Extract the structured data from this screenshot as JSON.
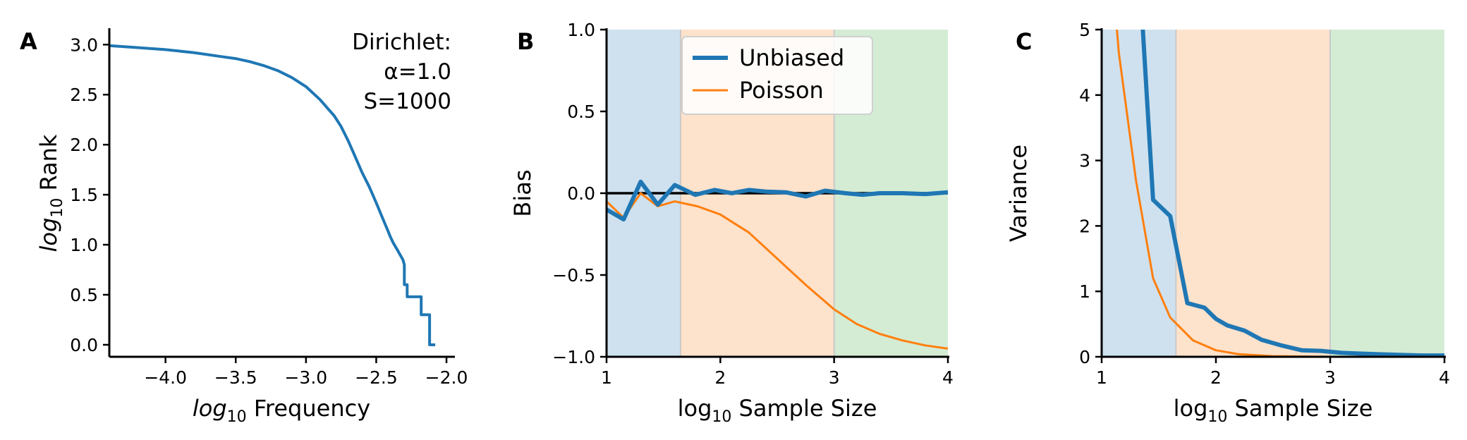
{
  "colors": {
    "unbiased": "#1f77b4",
    "poisson": "#ff7f0e",
    "band_blue": "#cfe1ef",
    "band_orange": "#fde2cc",
    "band_green": "#d4ecd4"
  },
  "chart_data": [
    {
      "type": "line",
      "panel": "A",
      "title": "",
      "xlabel_prefix": "log",
      "xlabel_sub": "10",
      "xlabel_suffix": " Frequency",
      "ylabel_prefix": "log",
      "ylabel_sub": "10",
      "ylabel_suffix": " Rank",
      "xlim": [
        -4.4,
        -1.95
      ],
      "ylim": [
        -0.12,
        3.15
      ],
      "xticks": [
        -4.0,
        -3.5,
        -3.0,
        -2.5,
        -2.0
      ],
      "xtick_labels": [
        "−4.0",
        "−3.5",
        "−3.0",
        "−2.5",
        "−2.0"
      ],
      "yticks": [
        0.0,
        0.5,
        1.0,
        1.5,
        2.0,
        2.5,
        3.0
      ],
      "ytick_labels": [
        "0.0",
        "0.5",
        "1.0",
        "1.5",
        "2.0",
        "2.5",
        "3.0"
      ],
      "annotation": [
        "Dirichlet:",
        "α=1.0",
        "S=1000"
      ],
      "series": [
        {
          "color": "#1f77b4",
          "x": [
            -4.4,
            -4.2,
            -4.0,
            -3.8,
            -3.6,
            -3.5,
            -3.4,
            -3.3,
            -3.2,
            -3.1,
            -3.0,
            -2.9,
            -2.85,
            -2.8,
            -2.75,
            -2.7,
            -2.65,
            -2.6,
            -2.55,
            -2.5,
            -2.45,
            -2.42,
            -2.4,
            -2.38,
            -2.35,
            -2.33,
            -2.31,
            -2.3,
            -2.3,
            -2.28,
            -2.28,
            -2.18,
            -2.18,
            -2.12,
            -2.12,
            -2.08
          ],
          "y": [
            2.99,
            2.97,
            2.95,
            2.92,
            2.88,
            2.86,
            2.83,
            2.79,
            2.74,
            2.67,
            2.58,
            2.45,
            2.37,
            2.29,
            2.18,
            2.04,
            1.88,
            1.72,
            1.58,
            1.42,
            1.25,
            1.15,
            1.08,
            1.02,
            0.95,
            0.9,
            0.85,
            0.8,
            0.6,
            0.6,
            0.48,
            0.48,
            0.3,
            0.3,
            0.0,
            0.0
          ]
        }
      ]
    },
    {
      "type": "line",
      "panel": "B",
      "title": "",
      "xlabel_prefix": "log",
      "xlabel_sub": "10",
      "xlabel_suffix": "  Sample Size",
      "ylabel": "Bias",
      "xlim": [
        1,
        4
      ],
      "ylim": [
        -1.0,
        1.0
      ],
      "xticks": [
        1,
        2,
        3,
        4
      ],
      "xtick_labels": [
        "1",
        "2",
        "3",
        "4"
      ],
      "yticks": [
        -1.0,
        -0.5,
        0.0,
        0.5,
        1.0
      ],
      "ytick_labels": [
        "−1.0",
        "−0.5",
        "0.0",
        "0.5",
        "1.0"
      ],
      "bands": [
        {
          "from": 1.0,
          "to": 1.65,
          "color": "#cfe1ef"
        },
        {
          "from": 1.65,
          "to": 3.0,
          "color": "#fde2cc"
        },
        {
          "from": 3.0,
          "to": 4.0,
          "color": "#d4ecd4"
        }
      ],
      "hline": 0.0,
      "legend": {
        "position": "upper-center",
        "entries": [
          "Unbiased",
          "Poisson"
        ]
      },
      "series": [
        {
          "name": "Unbiased",
          "color": "#1f77b4",
          "width": 6,
          "x": [
            1.0,
            1.15,
            1.3,
            1.45,
            1.6,
            1.78,
            1.95,
            2.1,
            2.25,
            2.4,
            2.58,
            2.75,
            2.92,
            3.1,
            3.25,
            3.4,
            3.6,
            3.8,
            4.0
          ],
          "y": [
            -0.1,
            -0.16,
            0.07,
            -0.07,
            0.05,
            -0.01,
            0.02,
            0.0,
            0.02,
            0.01,
            0.005,
            -0.02,
            0.015,
            0.0,
            -0.01,
            0.0,
            0.0,
            -0.005,
            0.005
          ]
        },
        {
          "name": "Poisson",
          "color": "#ff7f0e",
          "width": 3,
          "x": [
            1.0,
            1.15,
            1.3,
            1.45,
            1.6,
            1.8,
            2.0,
            2.25,
            2.5,
            2.75,
            3.0,
            3.2,
            3.4,
            3.6,
            3.8,
            4.0
          ],
          "y": [
            -0.05,
            -0.15,
            0.0,
            -0.08,
            -0.05,
            -0.08,
            -0.13,
            -0.24,
            -0.4,
            -0.56,
            -0.71,
            -0.8,
            -0.86,
            -0.9,
            -0.93,
            -0.95
          ]
        }
      ]
    },
    {
      "type": "line",
      "panel": "C",
      "title": "",
      "xlabel_prefix": "log",
      "xlabel_sub": "10",
      "xlabel_suffix": "  Sample Size",
      "ylabel": "Variance",
      "xlim": [
        1,
        4
      ],
      "ylim": [
        0,
        5
      ],
      "xticks": [
        1,
        2,
        3,
        4
      ],
      "xtick_labels": [
        "1",
        "2",
        "3",
        "4"
      ],
      "yticks": [
        0,
        1,
        2,
        3,
        4,
        5
      ],
      "ytick_labels": [
        "0",
        "1",
        "2",
        "3",
        "4",
        "5"
      ],
      "bands": [
        {
          "from": 1.0,
          "to": 1.65,
          "color": "#cfe1ef"
        },
        {
          "from": 1.65,
          "to": 3.0,
          "color": "#fde2cc"
        },
        {
          "from": 3.0,
          "to": 4.0,
          "color": "#d4ecd4"
        }
      ],
      "series": [
        {
          "name": "Unbiased",
          "color": "#1f77b4",
          "width": 6,
          "x": [
            1.35,
            1.45,
            1.6,
            1.75,
            1.9,
            2.0,
            2.1,
            2.25,
            2.4,
            2.58,
            2.75,
            2.92,
            3.1,
            3.25,
            3.4,
            3.6,
            3.8,
            4.0
          ],
          "y": [
            5.3,
            2.4,
            2.15,
            0.82,
            0.75,
            0.58,
            0.48,
            0.4,
            0.26,
            0.17,
            0.1,
            0.09,
            0.06,
            0.05,
            0.04,
            0.03,
            0.02,
            0.02
          ]
        },
        {
          "name": "Poisson",
          "color": "#ff7f0e",
          "width": 3,
          "x": [
            1.12,
            1.15,
            1.3,
            1.45,
            1.6,
            1.8,
            2.0,
            2.2,
            2.5,
            3.0,
            3.5,
            4.0
          ],
          "y": [
            5.3,
            4.65,
            2.7,
            1.2,
            0.6,
            0.25,
            0.1,
            0.04,
            0.01,
            0.0,
            0.0,
            0.0
          ]
        }
      ]
    }
  ]
}
